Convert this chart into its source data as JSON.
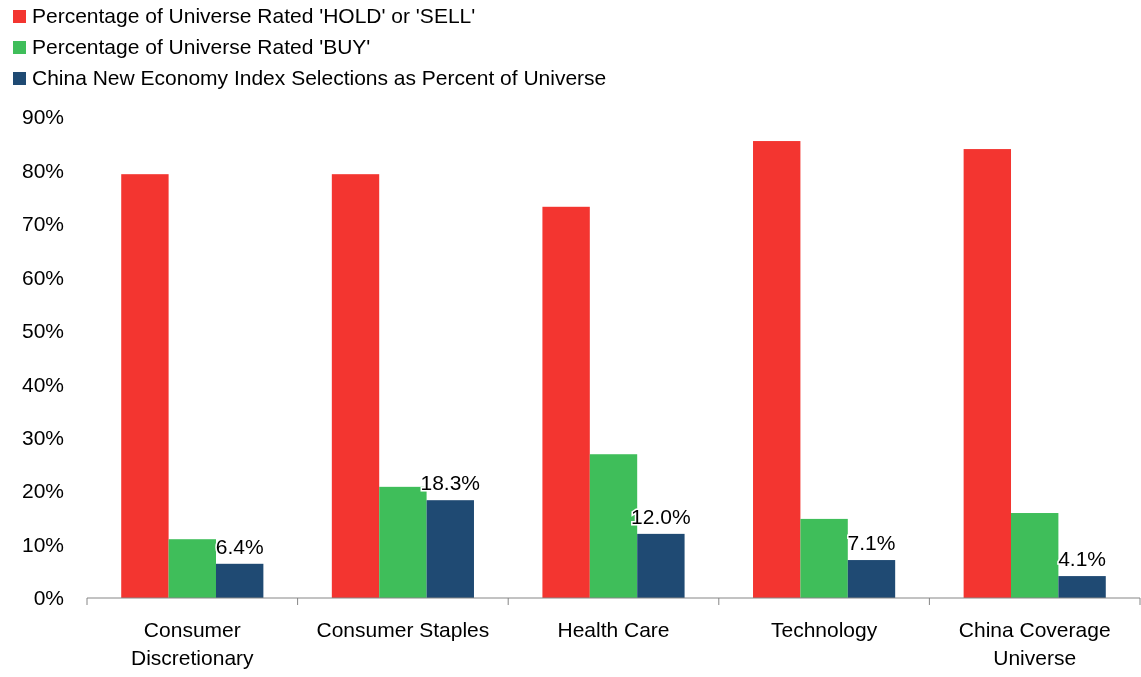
{
  "chart_data": {
    "type": "bar",
    "categories": [
      "Consumer Discretionary",
      "Consumer Staples",
      "Health Care",
      "Technology",
      "China Coverage Universe"
    ],
    "series": [
      {
        "name": "Percentage of Universe Rated 'HOLD' or 'SELL'",
        "color": "#f33530",
        "values": [
          79.3,
          79.3,
          73.2,
          85.5,
          84.0
        ]
      },
      {
        "name": "Percentage of Universe Rated 'BUY'",
        "color": "#3fbe5a",
        "values": [
          11.0,
          20.8,
          26.9,
          14.8,
          15.9
        ]
      },
      {
        "name": "China New Economy Index Selections as Percent of Universe",
        "color": "#1f4a73",
        "values": [
          6.4,
          18.3,
          12.0,
          7.1,
          4.1
        ],
        "value_labels": [
          "6.4%",
          "18.3%",
          "12.0%",
          "7.1%",
          "4.1%"
        ]
      }
    ],
    "ylim": [
      0,
      90
    ],
    "yticks": [
      {
        "value": 0,
        "label": "0%"
      },
      {
        "value": 10,
        "label": "10%"
      },
      {
        "value": 20,
        "label": "20%"
      },
      {
        "value": 30,
        "label": "30%"
      },
      {
        "value": 40,
        "label": "40%"
      },
      {
        "value": 50,
        "label": "50%"
      },
      {
        "value": 60,
        "label": "60%"
      },
      {
        "value": 70,
        "label": "70%"
      },
      {
        "value": 80,
        "label": "80%"
      },
      {
        "value": 90,
        "label": "90%"
      }
    ],
    "grid": false,
    "legend": "top left"
  }
}
